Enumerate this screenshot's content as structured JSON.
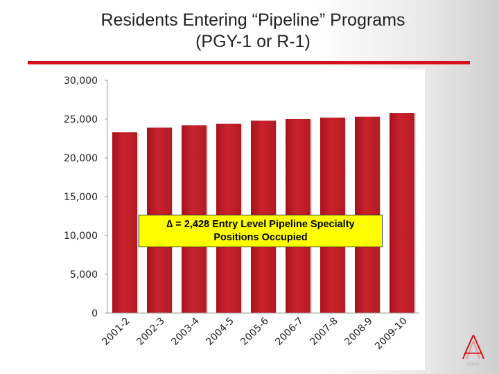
{
  "slide": {
    "title_line1": "Residents Entering “Pipeline” Programs",
    "title_line2": "(PGY-1 or R-1)",
    "accent_color": "#d7101e"
  },
  "callout": {
    "line1": "∆ = 2,428 Entry Level Pipeline Specialty",
    "line2": "Positions Occupied",
    "background": "#ffff00"
  },
  "logo": {
    "icon": "organization-logo-icon",
    "caption": "NRMP"
  },
  "chart_data": {
    "type": "bar",
    "categories": [
      "2001-2",
      "2002-3",
      "2003-4",
      "2004-5",
      "2005-6",
      "2006-7",
      "2007-8",
      "2008-9",
      "2009-10"
    ],
    "values": [
      23300,
      23900,
      24200,
      24400,
      24800,
      25000,
      25200,
      25300,
      25800
    ],
    "yticks": [
      0,
      5000,
      10000,
      15000,
      20000,
      25000,
      30000
    ],
    "ytick_labels": [
      "0",
      "5,000",
      "10,000",
      "15,000",
      "20,000",
      "25,000",
      "30,000"
    ],
    "ylim": [
      0,
      30000
    ],
    "bar_color": "#c0202a",
    "grid": false,
    "title": "",
    "xlabel": "",
    "ylabel": ""
  }
}
